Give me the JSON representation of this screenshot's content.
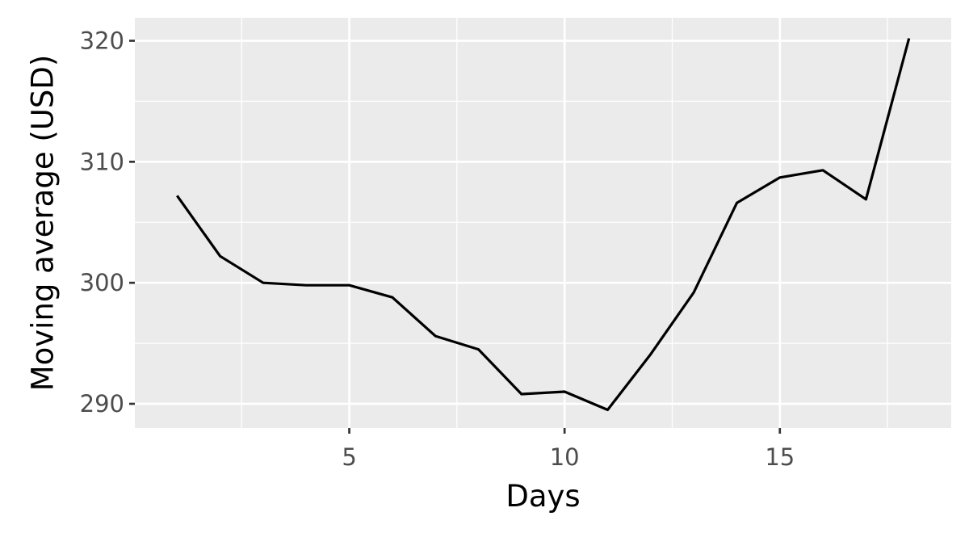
{
  "chart_data": {
    "type": "line",
    "title": "",
    "xlabel": "Days",
    "ylabel": "Moving average (USD)",
    "xlim": [
      0.02,
      18.98
    ],
    "ylim": [
      288.0,
      321.9
    ],
    "x_ticks": [
      5,
      10,
      15
    ],
    "y_ticks": [
      290,
      300,
      310,
      320
    ],
    "x_minor_ticks": [
      2.5,
      7.5,
      12.5,
      17.5
    ],
    "y_minor_ticks": [
      295,
      305,
      315
    ],
    "grid": true,
    "legend": "none",
    "series": [
      {
        "x": [
          1,
          2,
          3,
          4,
          5,
          6,
          7,
          8,
          9,
          10,
          11,
          12,
          13,
          14,
          15,
          16,
          17,
          18
        ],
        "values": [
          307.2,
          302.2,
          300.0,
          299.8,
          299.8,
          298.8,
          295.6,
          294.5,
          290.8,
          291.0,
          289.5,
          294.1,
          299.2,
          306.6,
          308.7,
          309.3,
          306.9,
          320.2
        ]
      }
    ],
    "colors": {
      "panel": "#ebebeb",
      "grid": "#ffffff",
      "line": "#000000",
      "tick_text": "#4d4d4d",
      "tick_mark": "#333333"
    }
  }
}
